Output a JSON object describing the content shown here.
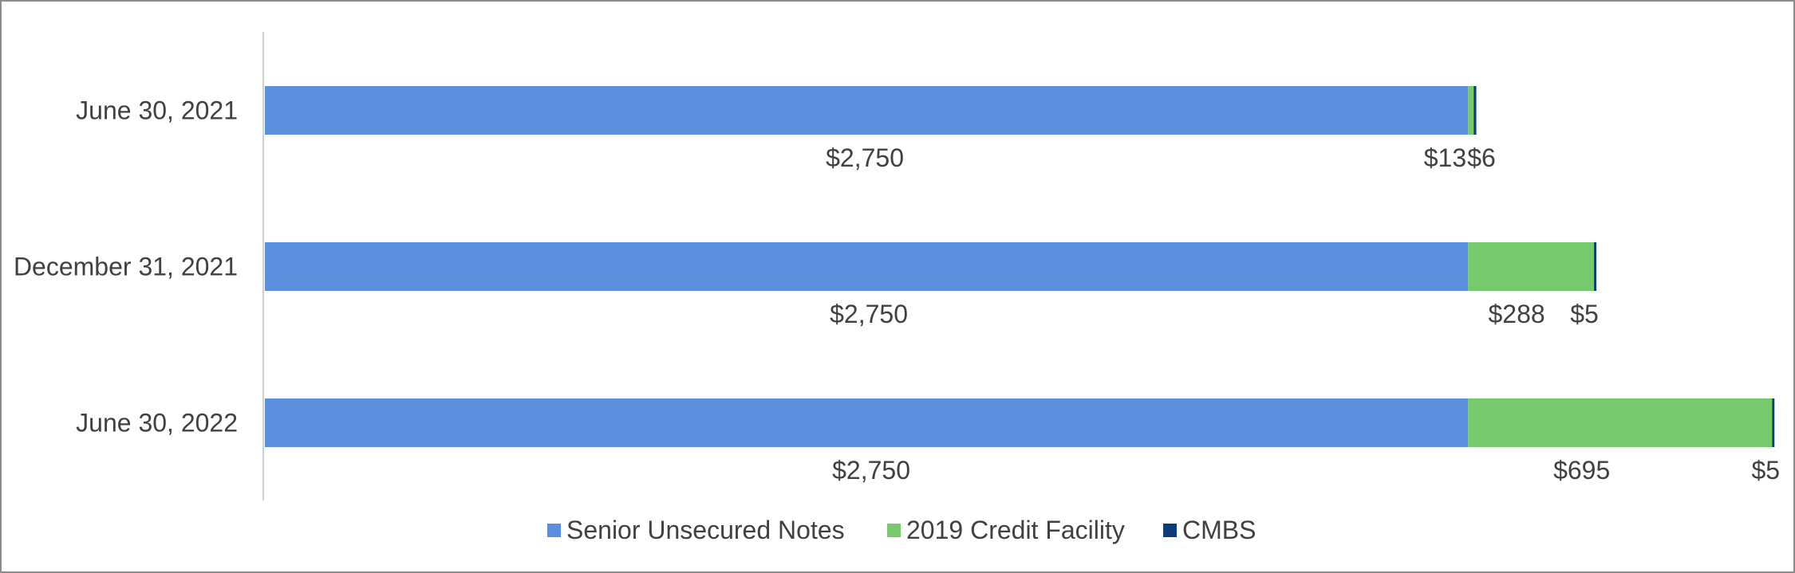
{
  "chart_data": {
    "type": "bar",
    "orientation": "horizontal",
    "stacked": true,
    "categories": [
      "June 30, 2021",
      "December 31, 2021",
      "June 30, 2022"
    ],
    "series": [
      {
        "name": "Senior Unsecured Notes",
        "values": [
          2750,
          2750,
          2750
        ],
        "labels": [
          "$2,750",
          "$2,750",
          "$2,750"
        ],
        "color": "#5b8fdb"
      },
      {
        "name": "2019 Credit Facility",
        "values": [
          13,
          288,
          695
        ],
        "labels": [
          "$13",
          "$288",
          "$695"
        ],
        "color": "#77c96e"
      },
      {
        "name": "CMBS",
        "values": [
          6,
          5,
          5
        ],
        "labels": [
          "$6",
          "$5",
          "$5"
        ],
        "color": "#0b3d7a"
      }
    ],
    "xlim": [
      0,
      3450
    ],
    "grid": false,
    "legend_position": "bottom"
  }
}
